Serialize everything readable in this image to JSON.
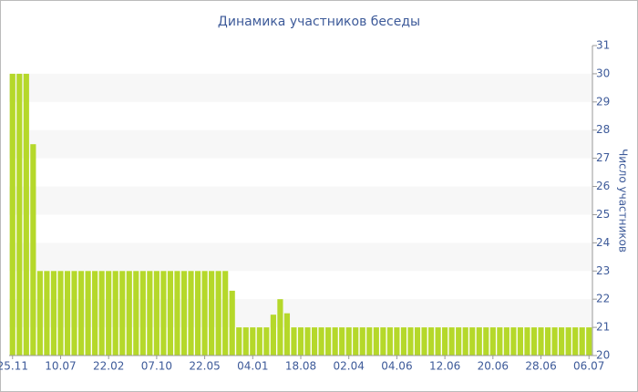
{
  "chart_data": {
    "type": "bar",
    "title": "Динамика участников беседы",
    "y_label": "Число участников",
    "categories": [
      "25.11",
      null,
      null,
      null,
      null,
      null,
      null,
      "10.07",
      null,
      null,
      null,
      null,
      null,
      null,
      "22.02",
      null,
      null,
      null,
      null,
      null,
      null,
      "07.10",
      null,
      null,
      null,
      null,
      null,
      null,
      "22.05",
      null,
      null,
      null,
      null,
      null,
      null,
      "04.01",
      null,
      null,
      null,
      null,
      null,
      null,
      "18.08",
      null,
      null,
      null,
      null,
      null,
      null,
      "02.04",
      null,
      null,
      null,
      null,
      null,
      null,
      "04.06",
      null,
      null,
      null,
      null,
      null,
      null,
      "12.06",
      null,
      null,
      null,
      null,
      null,
      null,
      "20.06",
      null,
      null,
      null,
      null,
      null,
      null,
      "28.06",
      null,
      null,
      null,
      null,
      null,
      null,
      "06.07"
    ],
    "values": [
      30,
      30,
      30,
      27.5,
      23,
      23,
      23,
      23,
      23,
      23,
      23,
      23,
      23,
      23,
      23,
      23,
      23,
      23,
      23,
      23,
      23,
      23,
      23,
      23,
      23,
      23,
      23,
      23,
      23,
      23,
      23,
      23,
      22.3,
      21,
      21,
      21,
      21,
      21,
      21.45,
      22,
      21.5,
      21,
      21,
      21,
      21,
      21,
      21,
      21,
      21,
      21,
      21,
      21,
      21,
      21,
      21,
      21,
      21,
      21,
      21,
      21,
      21,
      21,
      21,
      21,
      21,
      21,
      21,
      21,
      21,
      21,
      21,
      21,
      21,
      21,
      21,
      21,
      21,
      21,
      21,
      21,
      21,
      21,
      21,
      21,
      21
    ],
    "color": "#b5d82a",
    "ylim": [
      20,
      31
    ],
    "yticks": [
      20,
      21,
      22,
      23,
      24,
      25,
      26,
      27,
      28,
      29,
      30,
      31
    ],
    "y_axis_side": "right",
    "grid": true
  }
}
